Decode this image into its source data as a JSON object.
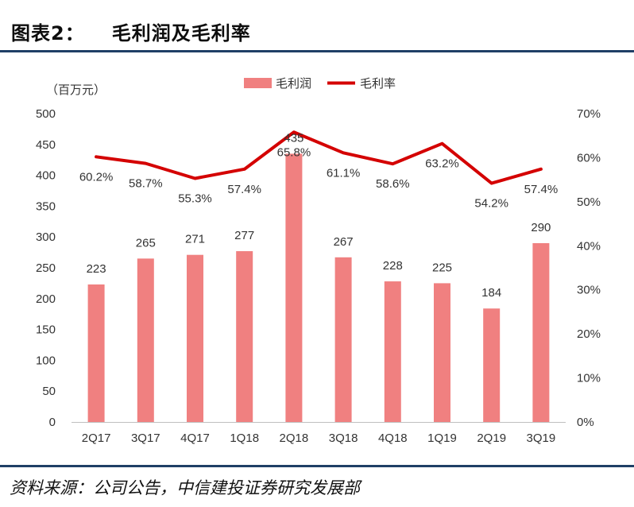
{
  "figure": {
    "label": "图表2：",
    "title": "毛利润及毛利率",
    "source": "资料来源：公司公告，中信建投证券研究发展部"
  },
  "chart_data": {
    "type": "bar",
    "categories": [
      "2Q17",
      "3Q17",
      "4Q17",
      "1Q18",
      "2Q18",
      "3Q18",
      "4Q18",
      "1Q19",
      "2Q19",
      "3Q19"
    ],
    "ylabel": "（百万元）",
    "ylim": [
      0,
      500
    ],
    "yticks": [
      "0",
      "50",
      "100",
      "150",
      "200",
      "250",
      "300",
      "350",
      "400",
      "450",
      "500"
    ],
    "y2lim": [
      0,
      70
    ],
    "y2ticks": [
      "0%",
      "10%",
      "20%",
      "30%",
      "40%",
      "50%",
      "60%",
      "70%"
    ],
    "grid": false,
    "legend_position": "top-center",
    "series": [
      {
        "name": "毛利润",
        "type": "bar",
        "axis": "left",
        "color": "#f08080",
        "values": [
          223,
          265,
          271,
          277,
          435,
          267,
          228,
          225,
          184,
          290
        ],
        "labels": [
          "223",
          "265",
          "271",
          "277",
          "435",
          "267",
          "228",
          "225",
          "184",
          "290"
        ]
      },
      {
        "name": "毛利率",
        "type": "line",
        "axis": "right",
        "color": "#d40000",
        "values": [
          60.2,
          58.7,
          55.3,
          57.4,
          65.8,
          61.1,
          58.6,
          63.2,
          54.2,
          57.4
        ],
        "labels": [
          "60.2%",
          "58.7%",
          "55.3%",
          "57.4%",
          "65.8%",
          "61.1%",
          "58.6%",
          "63.2%",
          "54.2%",
          "57.4%"
        ]
      }
    ]
  }
}
